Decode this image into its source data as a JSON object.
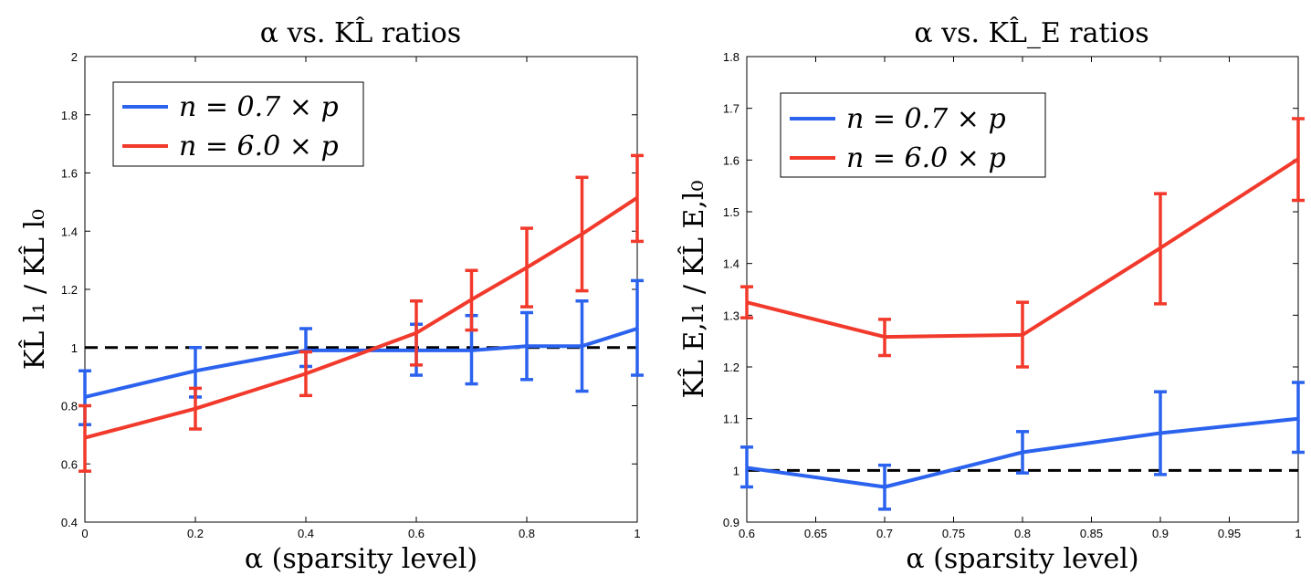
{
  "chart_data": [
    {
      "type": "line",
      "title": "α vs. KL̂ ratios",
      "xlabel": "α (sparsity level)",
      "ylabel": "KL̂ l₁ / KL̂ l₀",
      "xlim": [
        0,
        1
      ],
      "ylim": [
        0.4,
        2
      ],
      "xticks": [
        0,
        0.2,
        0.4,
        0.6,
        0.8,
        1
      ],
      "xtick_labels": [
        "0",
        "0.2",
        "0.4",
        "0.6",
        "0.8",
        "1"
      ],
      "yticks": [
        0.4,
        0.6,
        0.8,
        1,
        1.2,
        1.4,
        1.6,
        1.8,
        2
      ],
      "ytick_labels": [
        "0.4",
        "0.6",
        "0.8",
        "1",
        "1.2",
        "1.4",
        "1.6",
        "1.8",
        "2"
      ],
      "reference_line": 1,
      "legend_position": "top-left",
      "series": [
        {
          "name": "n = 0.7 × p",
          "color": "#2b62ee",
          "x": [
            0,
            0.2,
            0.4,
            0.6,
            0.7,
            0.8,
            0.9,
            1
          ],
          "values": [
            0.83,
            0.92,
            0.99,
            0.99,
            0.99,
            1.005,
            1.005,
            1.065
          ],
          "err_low": [
            0.735,
            0.83,
            0.935,
            0.905,
            0.875,
            0.89,
            0.85,
            0.905
          ],
          "err_high": [
            0.92,
            1.0,
            1.065,
            1.08,
            1.11,
            1.12,
            1.16,
            1.23
          ]
        },
        {
          "name": "n = 6.0 × p",
          "color": "#f23a2c",
          "x": [
            0,
            0.2,
            0.4,
            0.6,
            0.7,
            0.8,
            0.9,
            1
          ],
          "values": [
            0.69,
            0.79,
            0.91,
            1.05,
            1.165,
            1.275,
            1.39,
            1.515
          ],
          "err_low": [
            0.575,
            0.72,
            0.835,
            0.94,
            1.06,
            1.14,
            1.195,
            1.365
          ],
          "err_high": [
            0.8,
            0.86,
            0.985,
            1.16,
            1.265,
            1.41,
            1.585,
            1.66
          ]
        }
      ]
    },
    {
      "type": "line",
      "title": "α vs. KL̂_E ratios",
      "xlabel": "α (sparsity level)",
      "ylabel": "KL̂ E,l₁ / KL̂ E,l₀",
      "xlim": [
        0.6,
        1
      ],
      "ylim": [
        0.9,
        1.8
      ],
      "xticks": [
        0.6,
        0.65,
        0.7,
        0.75,
        0.8,
        0.85,
        0.9,
        0.95,
        1
      ],
      "xtick_labels": [
        "0.6",
        "0.65",
        "0.7",
        "0.75",
        "0.8",
        "0.85",
        "0.9",
        "0.95",
        "1"
      ],
      "yticks": [
        0.9,
        1,
        1.1,
        1.2,
        1.3,
        1.4,
        1.5,
        1.6,
        1.7,
        1.8
      ],
      "ytick_labels": [
        "0.9",
        "1",
        "1.1",
        "1.2",
        "1.3",
        "1.4",
        "1.5",
        "1.6",
        "1.7",
        "1.8"
      ],
      "reference_line": 1,
      "legend_position": "top-left",
      "series": [
        {
          "name": "n = 0.7 × p",
          "color": "#2b62ee",
          "x": [
            0.6,
            0.7,
            0.8,
            0.9,
            1
          ],
          "values": [
            1.005,
            0.968,
            1.035,
            1.072,
            1.1
          ],
          "err_low": [
            0.968,
            0.925,
            0.995,
            0.992,
            1.035
          ],
          "err_high": [
            1.045,
            1.01,
            1.075,
            1.152,
            1.17
          ]
        },
        {
          "name": "n = 6.0 × p",
          "color": "#f23a2c",
          "x": [
            0.6,
            0.7,
            0.8,
            0.9,
            1
          ],
          "values": [
            1.325,
            1.258,
            1.262,
            1.43,
            1.602
          ],
          "err_low": [
            1.295,
            1.222,
            1.2,
            1.322,
            1.522
          ],
          "err_high": [
            1.355,
            1.292,
            1.325,
            1.535,
            1.68
          ]
        }
      ]
    }
  ]
}
